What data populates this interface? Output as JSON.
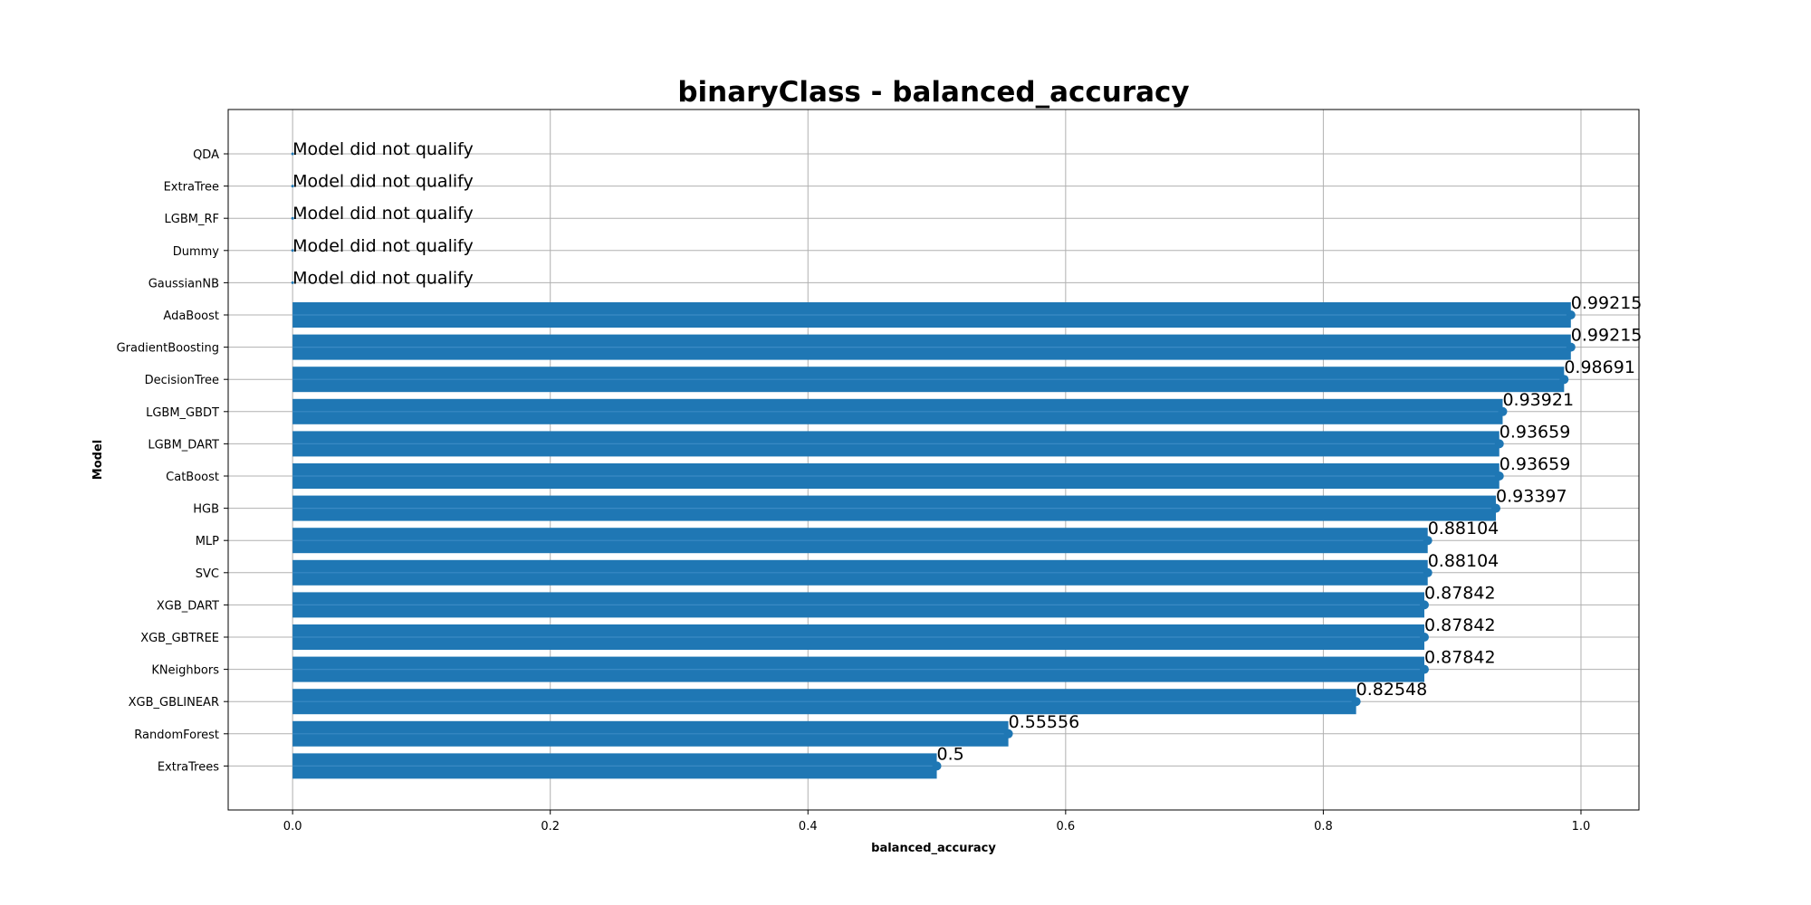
{
  "chart_data": {
    "type": "bar",
    "orientation": "horizontal",
    "title": "binaryClass - balanced_accuracy",
    "xlabel": "balanced_accuracy",
    "ylabel": "Model",
    "xlim": [
      -0.05,
      1.045
    ],
    "x_ticks": [
      0.0,
      0.2,
      0.4,
      0.6,
      0.8,
      1.0
    ],
    "x_tick_labels": [
      "0.0",
      "0.2",
      "0.4",
      "0.6",
      "0.8",
      "1.0"
    ],
    "grid": true,
    "bar_color": "#1f77b4",
    "not_qualified_text": "Model did not qualify",
    "categories": [
      "QDA",
      "ExtraTree",
      "LGBM_RF",
      "Dummy",
      "GaussianNB",
      "AdaBoost",
      "GradientBoosting",
      "DecisionTree",
      "LGBM_GBDT",
      "LGBM_DART",
      "CatBoost",
      "HGB",
      "MLP",
      "SVC",
      "XGB_DART",
      "XGB_GBTREE",
      "KNeighbors",
      "XGB_GBLINEAR",
      "RandomForest",
      "ExtraTrees"
    ],
    "values": [
      null,
      null,
      null,
      null,
      null,
      0.99215,
      0.99215,
      0.98691,
      0.93921,
      0.93659,
      0.93659,
      0.93397,
      0.88104,
      0.88104,
      0.87842,
      0.87842,
      0.87842,
      0.82548,
      0.55556,
      0.5
    ],
    "value_labels": [
      "",
      "",
      "",
      "",
      "",
      "0.99215",
      "0.99215",
      "0.98691",
      "0.93921",
      "0.93659",
      "0.93659",
      "0.93397",
      "0.88104",
      "0.88104",
      "0.87842",
      "0.87842",
      "0.87842",
      "0.82548",
      "0.55556",
      "0.5"
    ]
  }
}
